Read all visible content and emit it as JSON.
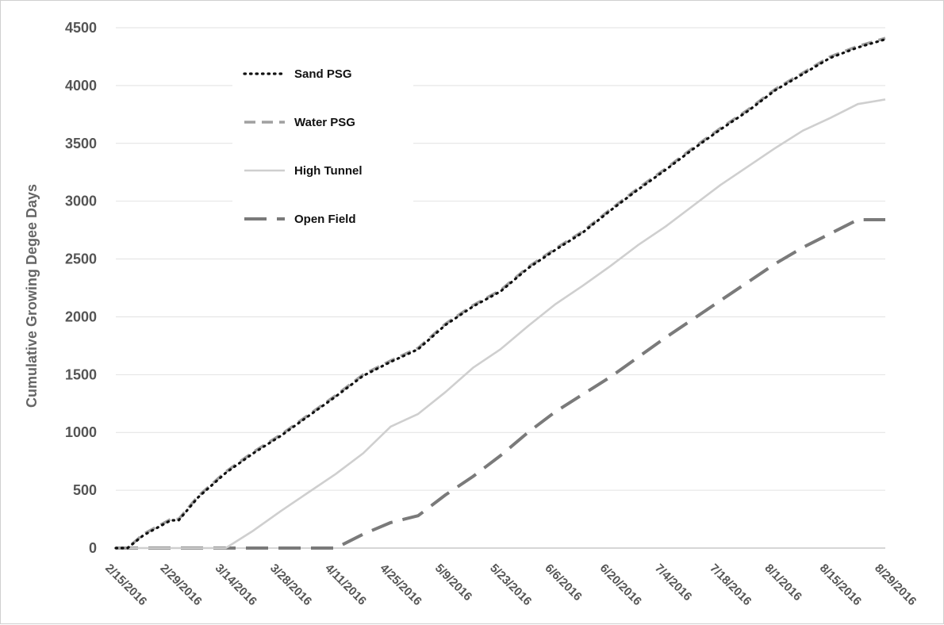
{
  "chart_data": {
    "type": "line",
    "title": "",
    "xlabel": "",
    "ylabel": "Cumulative Growing Degee Days",
    "ylim": [
      0,
      4500
    ],
    "yticks": [
      "0",
      "500",
      "1000",
      "1500",
      "2000",
      "2500",
      "3000",
      "3500",
      "4000",
      "4500"
    ],
    "x_tick_labels": [
      "2/15/2016",
      "2/29/2016",
      "3/14/2016",
      "3/28/2016",
      "4/11/2016",
      "4/25/2016",
      "5/9/2016",
      "5/23/2016",
      "6/6/2016",
      "6/20/2016",
      "7/4/2016",
      "7/18/2016",
      "8/1/2016",
      "8/15/2016",
      "8/29/2016"
    ],
    "x_day_range": [
      0,
      196
    ],
    "grid": true,
    "legend_position": "top-left",
    "series": [
      {
        "name": "Sand PSG",
        "color": "#111111",
        "style": "dotted",
        "x": [
          0,
          3,
          7,
          14,
          16,
          21,
          28,
          35,
          42,
          49,
          56,
          63,
          70,
          77,
          84,
          91,
          98,
          105,
          112,
          119,
          126,
          133,
          140,
          147,
          154,
          161,
          168,
          175,
          182,
          189,
          196
        ],
        "y": [
          0,
          0,
          110,
          240,
          240,
          440,
          650,
          820,
          970,
          1140,
          1310,
          1490,
          1610,
          1720,
          1930,
          2090,
          2220,
          2420,
          2580,
          2730,
          2920,
          3100,
          3270,
          3450,
          3620,
          3780,
          3960,
          4100,
          4240,
          4330,
          4400
        ]
      },
      {
        "name": "Water PSG",
        "color": "#a0a0a0",
        "style": "short-dash",
        "x": [
          0,
          3,
          7,
          14,
          16,
          21,
          28,
          35,
          42,
          49,
          56,
          63,
          70,
          77,
          84,
          91,
          98,
          105,
          112,
          119,
          126,
          133,
          140,
          147,
          154,
          161,
          168,
          175,
          182,
          189,
          196
        ],
        "y": [
          0,
          0,
          120,
          250,
          250,
          450,
          660,
          830,
          980,
          1150,
          1320,
          1500,
          1620,
          1730,
          1940,
          2100,
          2230,
          2430,
          2590,
          2740,
          2930,
          3110,
          3280,
          3460,
          3630,
          3790,
          3970,
          4110,
          4250,
          4340,
          4410
        ]
      },
      {
        "name": "High Tunnel",
        "color": "#cfcfcf",
        "style": "solid",
        "x": [
          0,
          14,
          28,
          35,
          42,
          49,
          56,
          63,
          70,
          77,
          84,
          91,
          98,
          105,
          112,
          119,
          126,
          133,
          140,
          147,
          154,
          161,
          168,
          175,
          182,
          189,
          196
        ],
        "y": [
          0,
          0,
          0,
          150,
          320,
          480,
          640,
          820,
          1050,
          1160,
          1350,
          1560,
          1720,
          1920,
          2110,
          2270,
          2440,
          2620,
          2780,
          2960,
          3140,
          3300,
          3460,
          3610,
          3720,
          3840,
          3880
        ]
      },
      {
        "name": "Open Field",
        "color": "#7a7a7a",
        "style": "long-dash",
        "x": [
          0,
          14,
          28,
          42,
          56,
          63,
          70,
          77,
          84,
          91,
          98,
          105,
          112,
          119,
          126,
          133,
          140,
          147,
          154,
          161,
          168,
          175,
          182,
          189,
          196
        ],
        "y": [
          0,
          0,
          0,
          0,
          0,
          120,
          220,
          280,
          460,
          620,
          800,
          1000,
          1180,
          1330,
          1480,
          1650,
          1820,
          1980,
          2140,
          2300,
          2460,
          2600,
          2720,
          2840,
          2840
        ]
      }
    ]
  }
}
